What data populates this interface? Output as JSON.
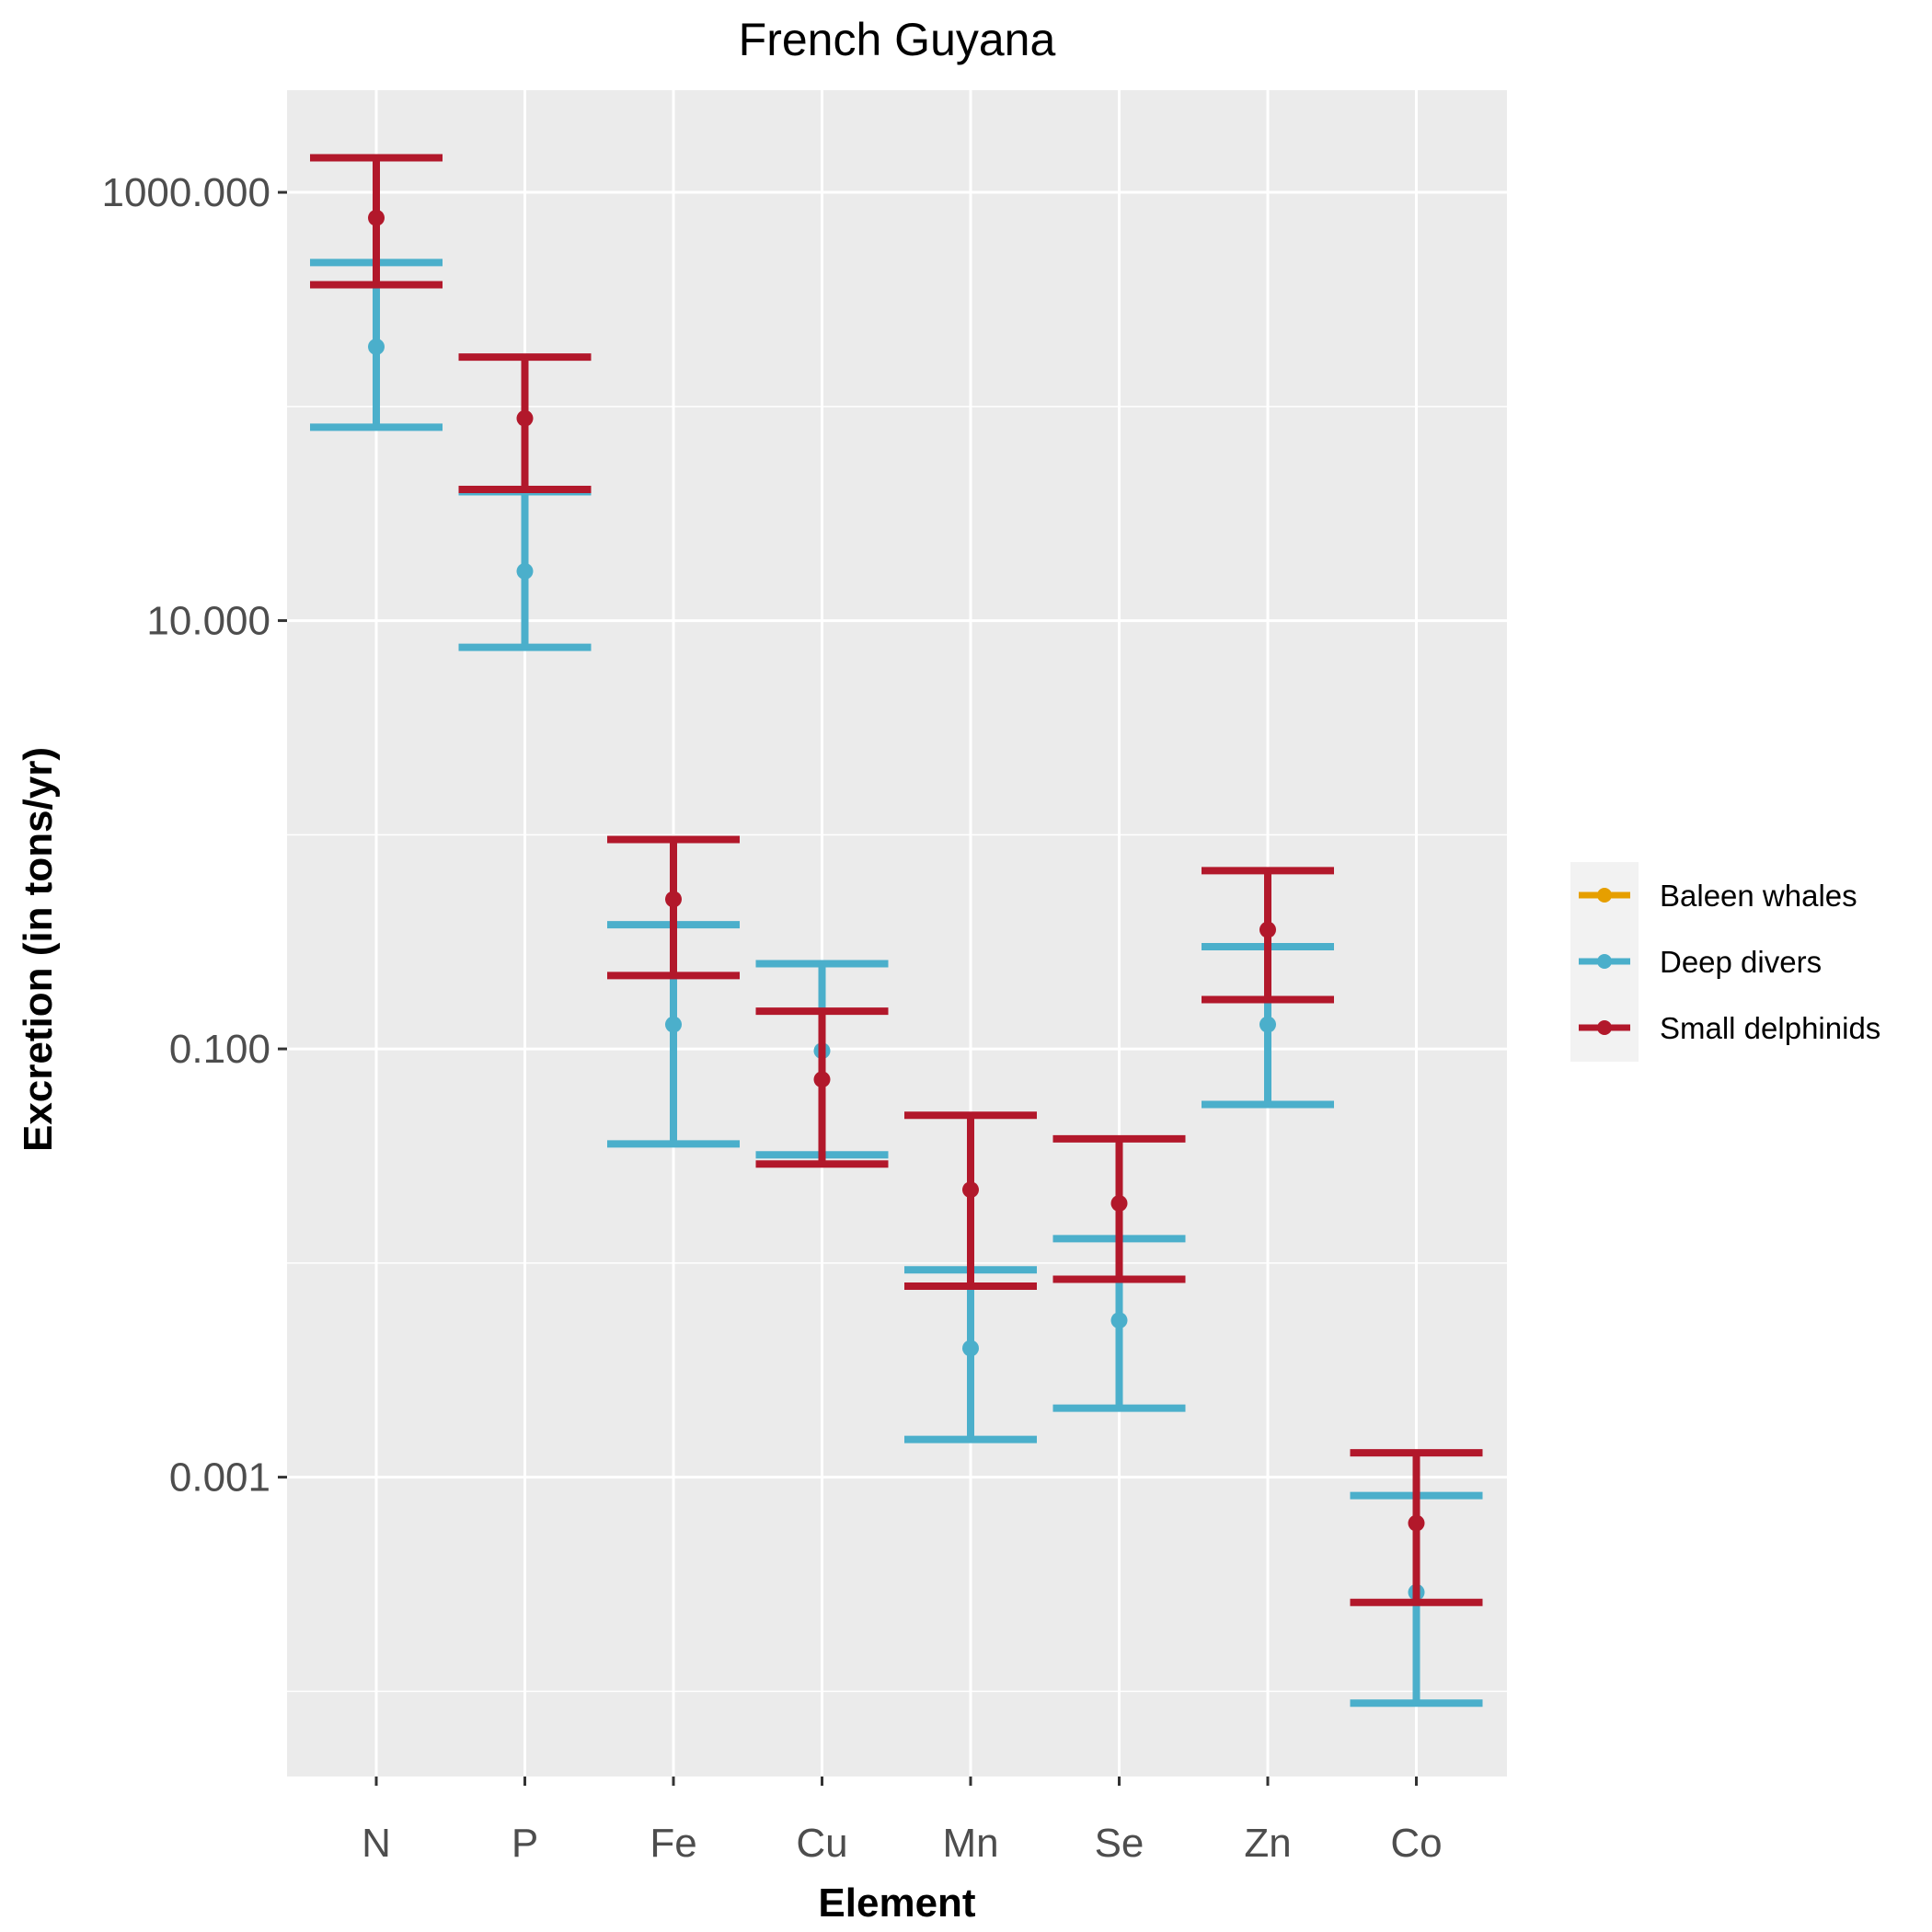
{
  "chart_data": {
    "type": "errorbar",
    "title": "French Guyana",
    "xlabel": "Element",
    "ylabel": "Excretion (in tons/yr)",
    "y_scale": "log10",
    "ylim": [
      4e-05,
      3000
    ],
    "y_ticks": [
      {
        "value": 1000,
        "label": "1000.000"
      },
      {
        "value": 10,
        "label": "10.000"
      },
      {
        "value": 0.1,
        "label": "0.100"
      },
      {
        "value": 0.001,
        "label": "0.001"
      }
    ],
    "y_minor_grid": [
      100,
      1,
      0.01,
      0.0001
    ],
    "categories": [
      "N",
      "P",
      "Fe",
      "Cu",
      "Mn",
      "Se",
      "Zn",
      "Co"
    ],
    "grid": true,
    "legend_position": "right",
    "series": [
      {
        "name": "Baleen whales",
        "color": "#E69F00",
        "points": []
      },
      {
        "name": "Deep divers",
        "color": "#4BAFCB",
        "points": [
          {
            "x": "N",
            "y": 190,
            "ymin": 80,
            "ymax": 470
          },
          {
            "x": "P",
            "y": 17,
            "ymin": 7.5,
            "ymax": 40
          },
          {
            "x": "Fe",
            "y": 0.13,
            "ymin": 0.036,
            "ymax": 0.38
          },
          {
            "x": "Cu",
            "y": 0.098,
            "ymin": 0.032,
            "ymax": 0.25
          },
          {
            "x": "Mn",
            "y": 0.004,
            "ymin": 0.0015,
            "ymax": 0.0093
          },
          {
            "x": "Se",
            "y": 0.0054,
            "ymin": 0.0021,
            "ymax": 0.013
          },
          {
            "x": "Zn",
            "y": 0.13,
            "ymin": 0.055,
            "ymax": 0.3
          },
          {
            "x": "Co",
            "y": 0.00029,
            "ymin": 8.8e-05,
            "ymax": 0.00082
          }
        ]
      },
      {
        "name": "Small delphinids",
        "color": "#B2182B",
        "points": [
          {
            "x": "N",
            "y": 760,
            "ymin": 370,
            "ymax": 1450
          },
          {
            "x": "P",
            "y": 88,
            "ymin": 41,
            "ymax": 170
          },
          {
            "x": "Fe",
            "y": 0.5,
            "ymin": 0.22,
            "ymax": 0.95
          },
          {
            "x": "Cu",
            "y": 0.072,
            "ymin": 0.029,
            "ymax": 0.15
          },
          {
            "x": "Mn",
            "y": 0.022,
            "ymin": 0.0078,
            "ymax": 0.049
          },
          {
            "x": "Se",
            "y": 0.019,
            "ymin": 0.0084,
            "ymax": 0.038
          },
          {
            "x": "Zn",
            "y": 0.36,
            "ymin": 0.17,
            "ymax": 0.68
          },
          {
            "x": "Co",
            "y": 0.00061,
            "ymin": 0.00026,
            "ymax": 0.0013
          }
        ]
      }
    ]
  }
}
